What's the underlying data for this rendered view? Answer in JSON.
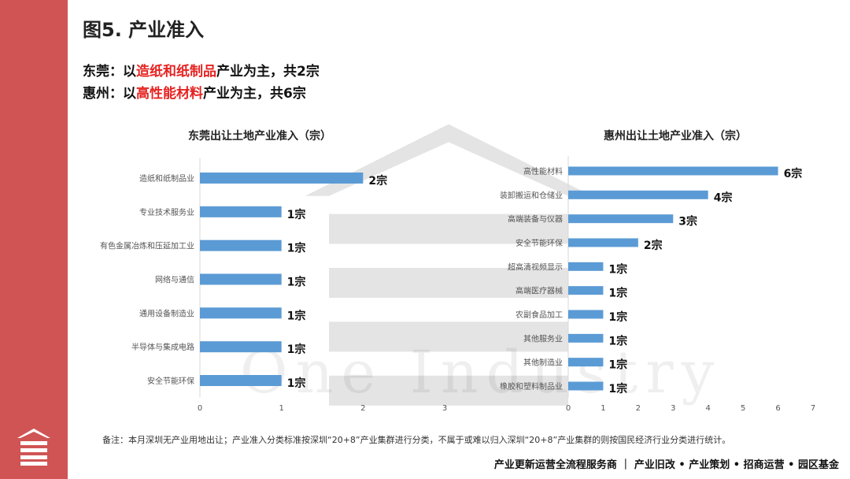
{
  "page": {
    "title": "图5. 产业准入",
    "line1": {
      "prefix": "东莞：以",
      "highlight": "造纸和纸制品",
      "suffix": "产业为主，共2宗"
    },
    "line2": {
      "prefix": "惠州：以",
      "highlight": "高性能材料",
      "suffix": "产业为主，共6宗"
    },
    "note": "备注：本月深圳无产业用地出让；产业准入分类标准按深圳“20+8”产业集群进行分类，不属于或难以归入深圳“20+8”产业集群的则按国民经济行业分类进行统计。",
    "footer": "产业更新运营全流程服务商 ｜ 产业旧改 • 产业策划 • 招商运营 • 园区基金",
    "watermark": "One Industry",
    "accent_color": "#d05454",
    "highlight_color": "#e52321",
    "bar_color": "#5b9bd5"
  },
  "chart_data": [
    {
      "type": "bar",
      "orientation": "horizontal",
      "title": "东莞出让土地产业准入（宗）",
      "categories": [
        "造纸和纸制品业",
        "专业技术服务业",
        "有色金属冶炼和压延加工业",
        "网络与通信",
        "通用设备制造业",
        "半导体与集成电路",
        "安全节能环保"
      ],
      "values": [
        2,
        1,
        1,
        1,
        1,
        1,
        1
      ],
      "value_labels": [
        "2宗",
        "1宗",
        "1宗",
        "1宗",
        "1宗",
        "1宗",
        "1宗"
      ],
      "xlim": [
        0,
        3
      ],
      "xticks": [
        "0",
        "1",
        "2",
        "3"
      ],
      "grid": false
    },
    {
      "type": "bar",
      "orientation": "horizontal",
      "title": "惠州出让土地产业准入（宗）",
      "categories": [
        "高性能材料",
        "装卸搬运和仓储业",
        "高端装备与仪器",
        "安全节能环保",
        "超高清视频显示",
        "高端医疗器械",
        "农副食品加工",
        "其他服务业",
        "其他制造业",
        "橡胶和塑料制品业"
      ],
      "values": [
        6,
        4,
        3,
        2,
        1,
        1,
        1,
        1,
        1,
        1
      ],
      "value_labels": [
        "6宗",
        "4宗",
        "3宗",
        "2宗",
        "1宗",
        "1宗",
        "1宗",
        "1宗",
        "1宗",
        "1宗"
      ],
      "xlim": [
        0,
        7
      ],
      "xticks": [
        "0",
        "1",
        "2",
        "3",
        "4",
        "5",
        "6",
        "7"
      ],
      "grid": false
    }
  ]
}
